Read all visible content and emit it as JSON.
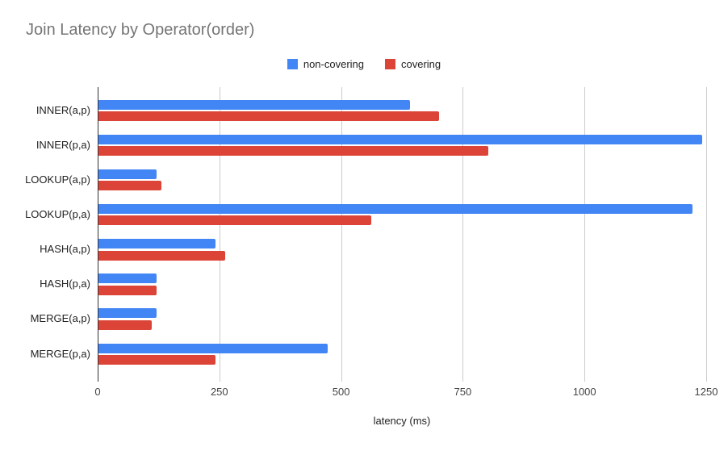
{
  "chart": {
    "title": "Join Latency by Operator(order)",
    "title_color": "#757575",
    "background_color": "#ffffff",
    "gridline_color": "#cccccc",
    "axis_line_color": "#333333"
  },
  "chart_data": {
    "type": "bar",
    "orientation": "horizontal",
    "title": "Join Latency by Operator(order)",
    "categories": [
      "INNER(a,p)",
      "INNER(p,a)",
      "LOOKUP(a,p)",
      "LOOKUP(p,a)",
      "HASH(a,p)",
      "HASH(p,a)",
      "MERGE(a,p)",
      "MERGE(p,a)"
    ],
    "series": [
      {
        "name": "non-covering",
        "color": "#4285f4",
        "values": [
          640,
          1240,
          120,
          1220,
          240,
          120,
          120,
          470
        ]
      },
      {
        "name": "covering",
        "color": "#db4437",
        "values": [
          700,
          800,
          130,
          560,
          260,
          120,
          110,
          240
        ]
      }
    ],
    "xlabel": "latency (ms)",
    "ylabel": "",
    "xlim": [
      0,
      1250
    ],
    "xticks": [
      0,
      250,
      500,
      750,
      1000,
      1250
    ],
    "grid": true,
    "legend_position": "top-center"
  }
}
